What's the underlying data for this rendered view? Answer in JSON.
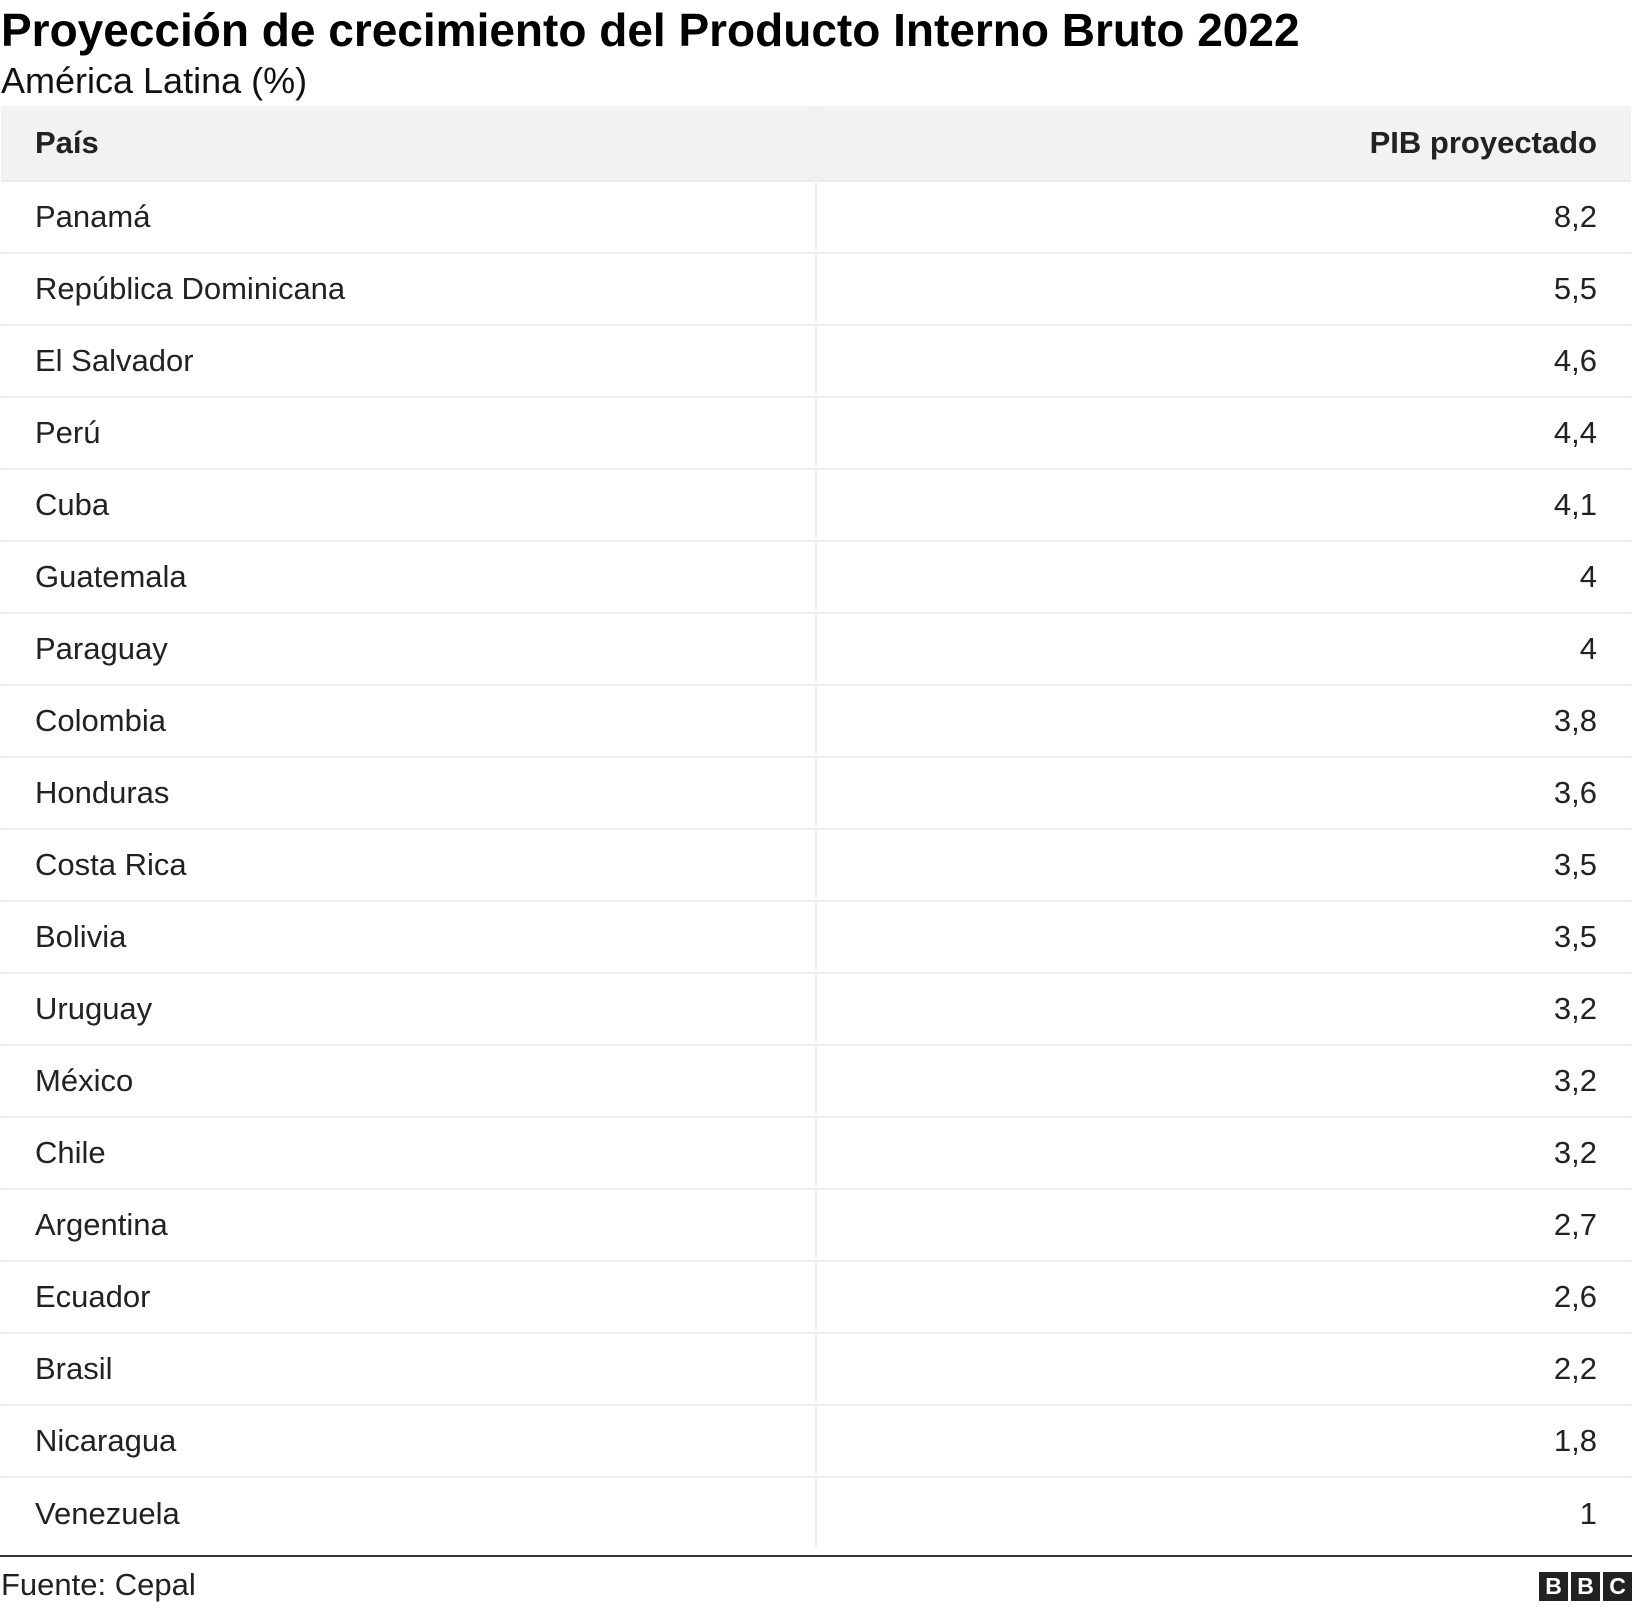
{
  "title": "Proyección de crecimiento del Producto Interno Bruto 2022",
  "subtitle": "América Latina (%)",
  "source": "Fuente: Cepal",
  "logo_text": "BBC",
  "logo_letters": [
    "B",
    "B",
    "C"
  ],
  "colors": {
    "header_bg": "#f2f2f2",
    "row_border": "#ececec",
    "footer_rule": "#333333",
    "logo_bg": "#222222"
  },
  "chart_data": {
    "type": "table",
    "title": "Proyección de crecimiento del Producto Interno Bruto 2022",
    "subtitle": "América Latina (%)",
    "columns": [
      "País",
      "PIB proyectado"
    ],
    "rows": [
      [
        "Panamá",
        "8,2"
      ],
      [
        "República Dominicana",
        "5,5"
      ],
      [
        "El Salvador",
        "4,6"
      ],
      [
        "Perú",
        "4,4"
      ],
      [
        "Cuba",
        "4,1"
      ],
      [
        "Guatemala",
        "4"
      ],
      [
        "Paraguay",
        "4"
      ],
      [
        "Colombia",
        "3,8"
      ],
      [
        "Honduras",
        "3,6"
      ],
      [
        "Costa Rica",
        "3,5"
      ],
      [
        "Bolivia",
        "3,5"
      ],
      [
        "Uruguay",
        "3,2"
      ],
      [
        "México",
        "3,2"
      ],
      [
        "Chile",
        "3,2"
      ],
      [
        "Argentina",
        "2,7"
      ],
      [
        "Ecuador",
        "2,6"
      ],
      [
        "Brasil",
        "2,2"
      ],
      [
        "Nicaragua",
        "1,8"
      ],
      [
        "Venezuela",
        "1"
      ]
    ],
    "values": [
      8.2,
      5.5,
      4.6,
      4.4,
      4.1,
      4,
      4,
      3.8,
      3.6,
      3.5,
      3.5,
      3.2,
      3.2,
      3.2,
      2.7,
      2.6,
      2.2,
      1.8,
      1
    ],
    "source": "Fuente: Cepal"
  }
}
